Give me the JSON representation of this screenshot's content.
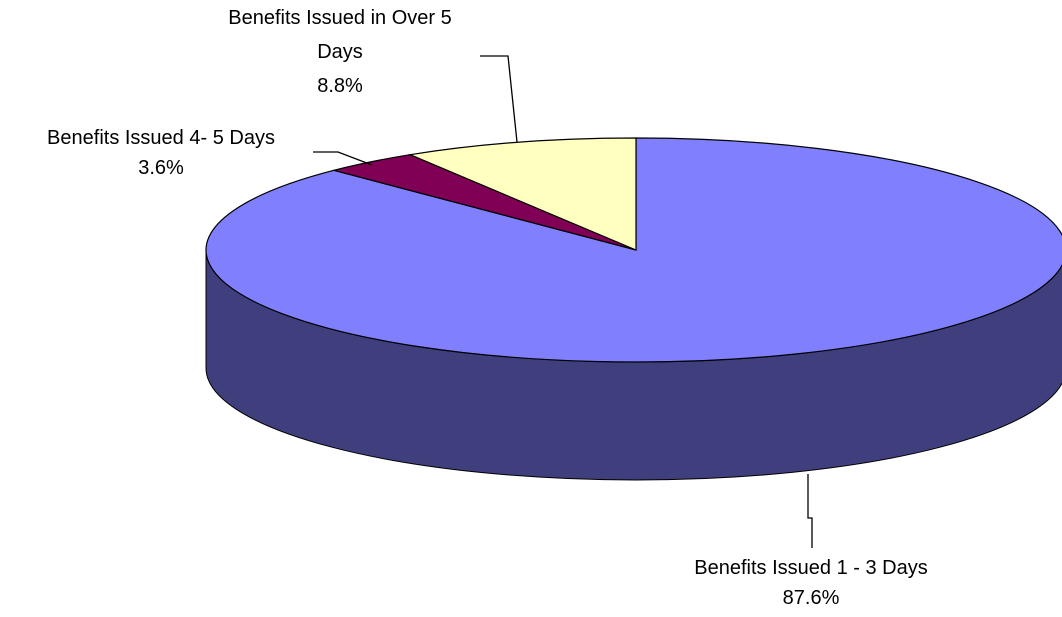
{
  "chart_data": {
    "type": "pie",
    "title": "",
    "style": "3d-perspective",
    "legend": "none",
    "start_angle_deg": 90,
    "direction": "clockwise",
    "slices": [
      {
        "label_lines": [
          "Benefits Issued 1 - 3 Days"
        ],
        "pct_label": "87.6%",
        "value": 87.6,
        "top_color": "#8080ff",
        "side_color": "#3f3f7d"
      },
      {
        "label_lines": [
          "Benefits Issued 4- 5 Days"
        ],
        "pct_label": "3.6%",
        "value": 3.6,
        "top_color": "#800055",
        "side_color": "#4d0033"
      },
      {
        "label_lines": [
          "Benefits Issued in Over 5",
          "Days"
        ],
        "pct_label": "8.8%",
        "value": 8.8,
        "top_color": "#ffffc0",
        "side_color": "#c8c896"
      }
    ]
  }
}
